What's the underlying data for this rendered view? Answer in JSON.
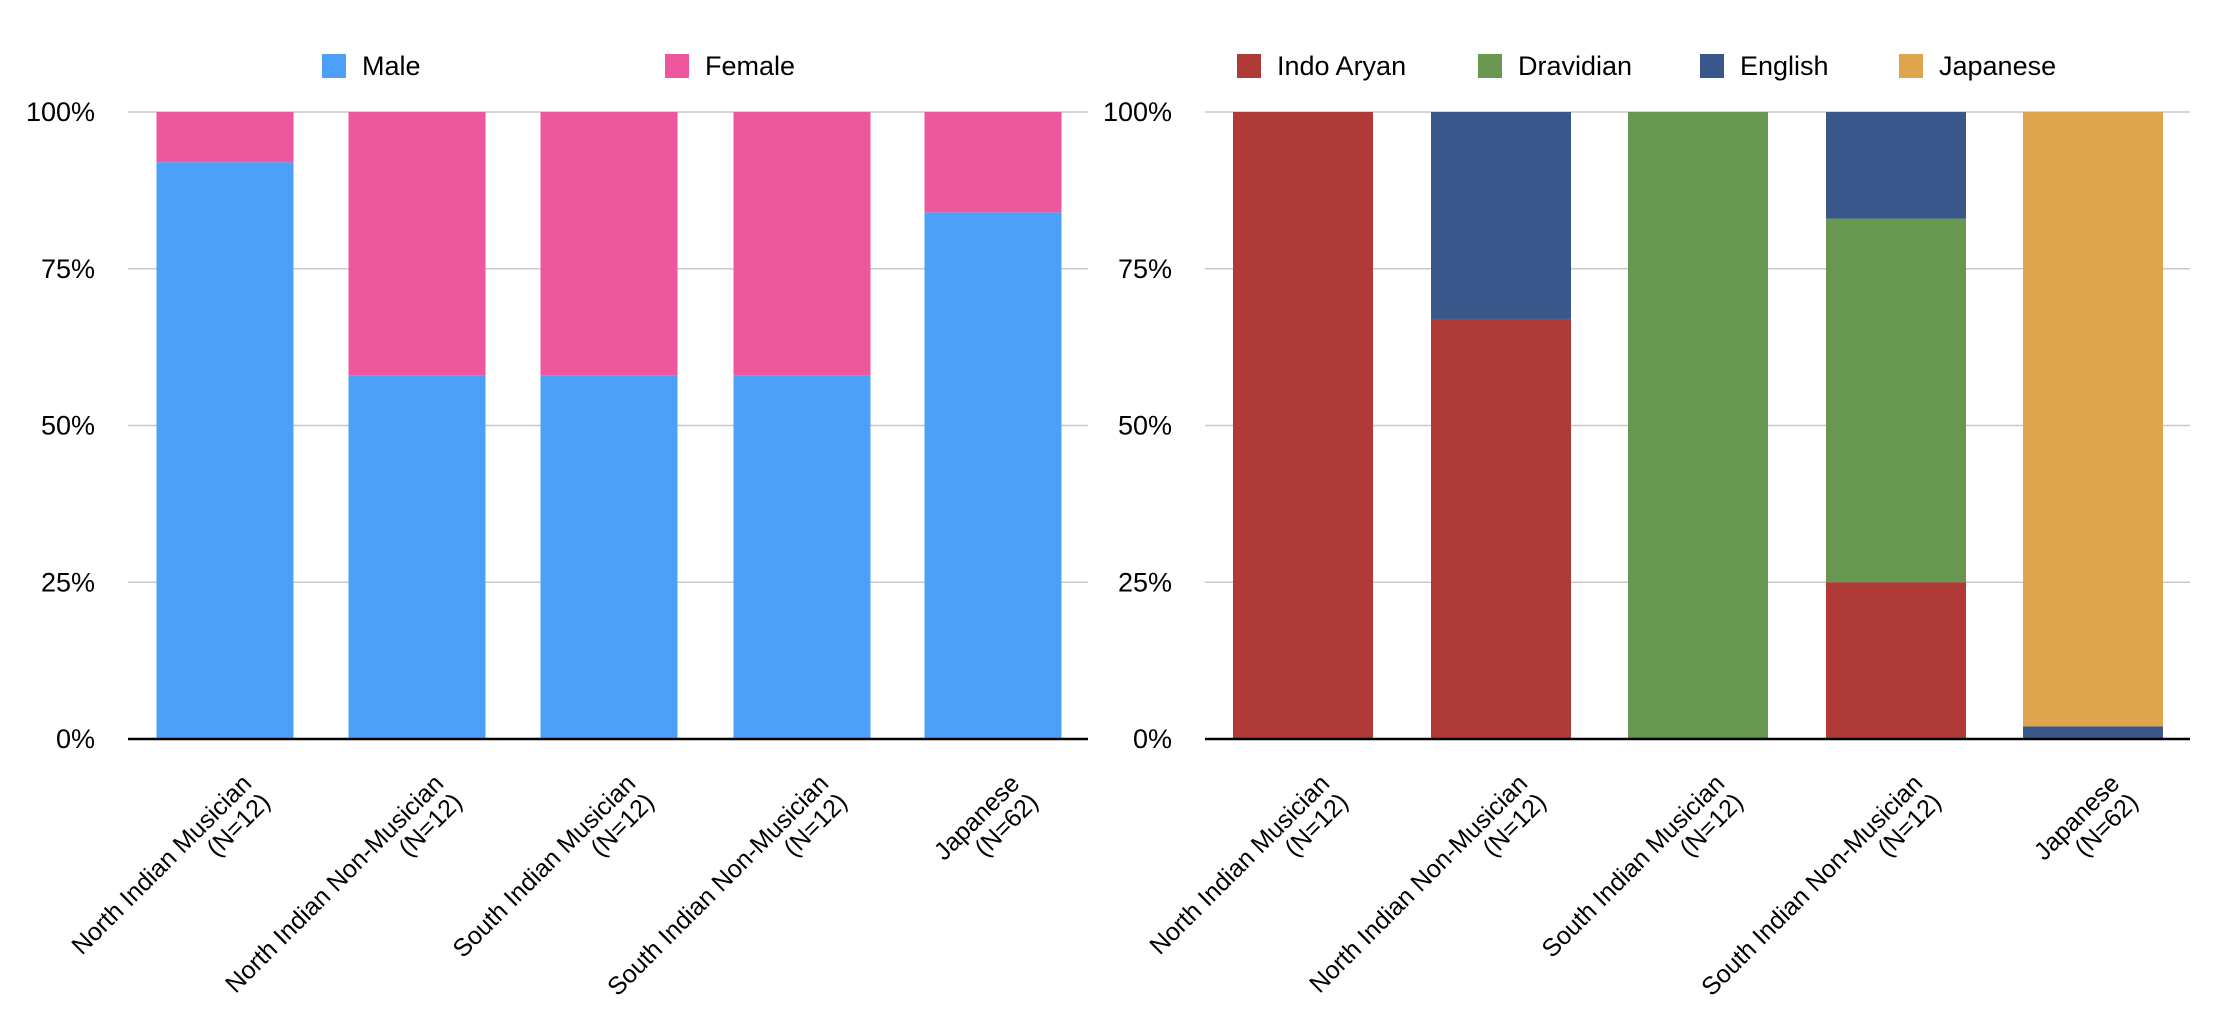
{
  "colors": {
    "male": "#4da0f8",
    "female": "#ee569e",
    "indo_aryan": "#b03a38",
    "dravidian": "#68974f",
    "english": "#39578a",
    "japanese": "#dea54c"
  },
  "chart_data": [
    {
      "type": "bar",
      "stacked": true,
      "percent": true,
      "categories": [
        [
          "North Indian Musician",
          "(N=12)"
        ],
        [
          "North Indian Non-Musician",
          "(N=12)"
        ],
        [
          "South Indian Musician",
          "(N=12)"
        ],
        [
          "South Indian Non-Musician",
          "(N=12)"
        ],
        [
          "Japanese",
          "(N=62)"
        ]
      ],
      "series": [
        {
          "name": "Male",
          "color_key": "male",
          "values": [
            92,
            58,
            58,
            58,
            84
          ]
        },
        {
          "name": "Female",
          "color_key": "female",
          "values": [
            8,
            42,
            42,
            42,
            16
          ]
        }
      ],
      "ylim": [
        0,
        100
      ],
      "yticks": [
        "0%",
        "25%",
        "50%",
        "75%",
        "100%"
      ],
      "grid": true,
      "legend_position": "top"
    },
    {
      "type": "bar",
      "stacked": true,
      "percent": true,
      "categories": [
        [
          "North Indian Musician",
          "(N=12)"
        ],
        [
          "North Indian Non-Musician",
          "(N=12)"
        ],
        [
          "South Indian Musician",
          "(N=12)"
        ],
        [
          "South Indian Non-Musician",
          "(N=12)"
        ],
        [
          "Japanese",
          "(N=62)"
        ]
      ],
      "series": [
        {
          "name": "Indo Aryan",
          "color_key": "indo_aryan",
          "values": [
            100,
            67,
            0,
            25,
            0
          ]
        },
        {
          "name": "Dravidian",
          "color_key": "dravidian",
          "values": [
            0,
            0,
            100,
            58,
            0
          ]
        },
        {
          "name": "English",
          "color_key": "english",
          "values": [
            0,
            33,
            0,
            17,
            2
          ]
        },
        {
          "name": "Japanese",
          "color_key": "japanese",
          "values": [
            0,
            0,
            0,
            0,
            98
          ]
        }
      ],
      "ylim": [
        0,
        100
      ],
      "yticks": [
        "0%",
        "25%",
        "50%",
        "75%",
        "100%"
      ],
      "grid": true,
      "legend_position": "top"
    }
  ]
}
